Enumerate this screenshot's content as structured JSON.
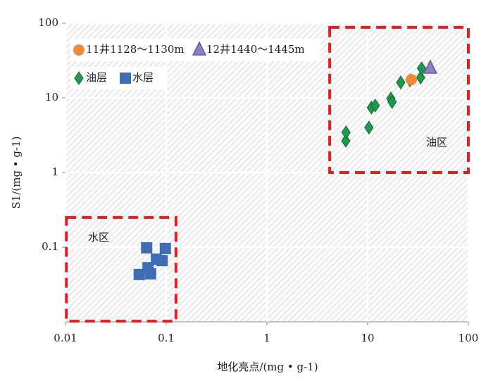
{
  "chart_data": {
    "type": "scatter",
    "x_label": "地化亮点/(mg • g-1)",
    "y_label": "S1/(mg • g-1)",
    "xlim": [
      0.01,
      100
    ],
    "ylim": [
      0.01,
      100
    ],
    "xticks": [
      0.01,
      0.1,
      1,
      10,
      100
    ],
    "yticks": [
      0.1,
      1,
      10,
      100
    ],
    "log_x": true,
    "log_y": true,
    "grid": true,
    "series": [
      {
        "name": "11井1128～1130m",
        "color": "#f0883a",
        "marker": "circle",
        "x": [
          27.2
        ],
        "values": [
          17.6
        ]
      },
      {
        "name": "12井1440～1445m",
        "color": "#9080c0",
        "marker": "triangle",
        "x": [
          41.9
        ],
        "values": [
          24.9
        ]
      },
      {
        "name": "油层",
        "color": "#1f9a4c",
        "marker": "diamond",
        "x": [
          6.07,
          6.1,
          10.3,
          10.9,
          11.9,
          17.0,
          17.5,
          21.3,
          26.3,
          33.6,
          34.3
        ],
        "values": [
          2.66,
          3.45,
          4.0,
          7.4,
          7.9,
          9.8,
          8.8,
          16.1,
          17.2,
          18.7,
          24.9
        ]
      },
      {
        "name": "水层",
        "color": "#3e6db3",
        "marker": "square",
        "x": [
          0.064,
          0.098,
          0.08,
          0.066,
          0.054,
          0.07,
          0.091
        ],
        "values": [
          0.098,
          0.096,
          0.069,
          0.053,
          0.043,
          0.044,
          0.066
        ]
      }
    ],
    "regions": [
      {
        "label": "油区",
        "xlim": [
          4.2,
          100
        ],
        "ylim": [
          1,
          88
        ]
      },
      {
        "label": "水区",
        "xlim": [
          0.0102,
          0.125
        ],
        "ylim": [
          0.0102,
          0.25
        ]
      }
    ]
  }
}
